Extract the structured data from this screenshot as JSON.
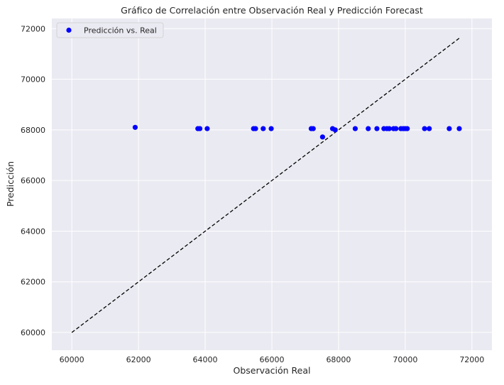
{
  "chart_data": {
    "type": "scatter",
    "title": "Gráfico de Correlación entre Observación Real y Predicción Forecast",
    "xlabel": "Observación Real",
    "ylabel": "Predicción",
    "xlim": [
      59400,
      72600
    ],
    "ylim": [
      59300,
      72400
    ],
    "xticks": [
      60000,
      62000,
      64000,
      66000,
      68000,
      70000,
      72000
    ],
    "yticks": [
      60000,
      62000,
      64000,
      66000,
      68000,
      70000,
      72000
    ],
    "grid": true,
    "legend": {
      "placement": "top-left",
      "entries": [
        "Predicción vs. Real"
      ]
    },
    "series": [
      {
        "name": "Predicción vs. Real",
        "color": "#0000ff",
        "points": [
          [
            61900,
            68100
          ],
          [
            63780,
            68050
          ],
          [
            63840,
            68050
          ],
          [
            64060,
            68050
          ],
          [
            65450,
            68050
          ],
          [
            65510,
            68050
          ],
          [
            65740,
            68050
          ],
          [
            65980,
            68050
          ],
          [
            67180,
            68050
          ],
          [
            67240,
            68050
          ],
          [
            67520,
            67720
          ],
          [
            67820,
            68050
          ],
          [
            67900,
            68000
          ],
          [
            68500,
            68050
          ],
          [
            68890,
            68050
          ],
          [
            69150,
            68050
          ],
          [
            69360,
            68050
          ],
          [
            69450,
            68050
          ],
          [
            69520,
            68050
          ],
          [
            69650,
            68050
          ],
          [
            69720,
            68050
          ],
          [
            69870,
            68050
          ],
          [
            69940,
            68050
          ],
          [
            70000,
            68050
          ],
          [
            70060,
            68050
          ],
          [
            70580,
            68050
          ],
          [
            70720,
            68050
          ],
          [
            71320,
            68050
          ],
          [
            71620,
            68050
          ]
        ]
      }
    ],
    "reference_line": {
      "style": "dashed",
      "color": "#000000",
      "from": [
        60000,
        60000
      ],
      "to": [
        71620,
        71620
      ]
    }
  }
}
